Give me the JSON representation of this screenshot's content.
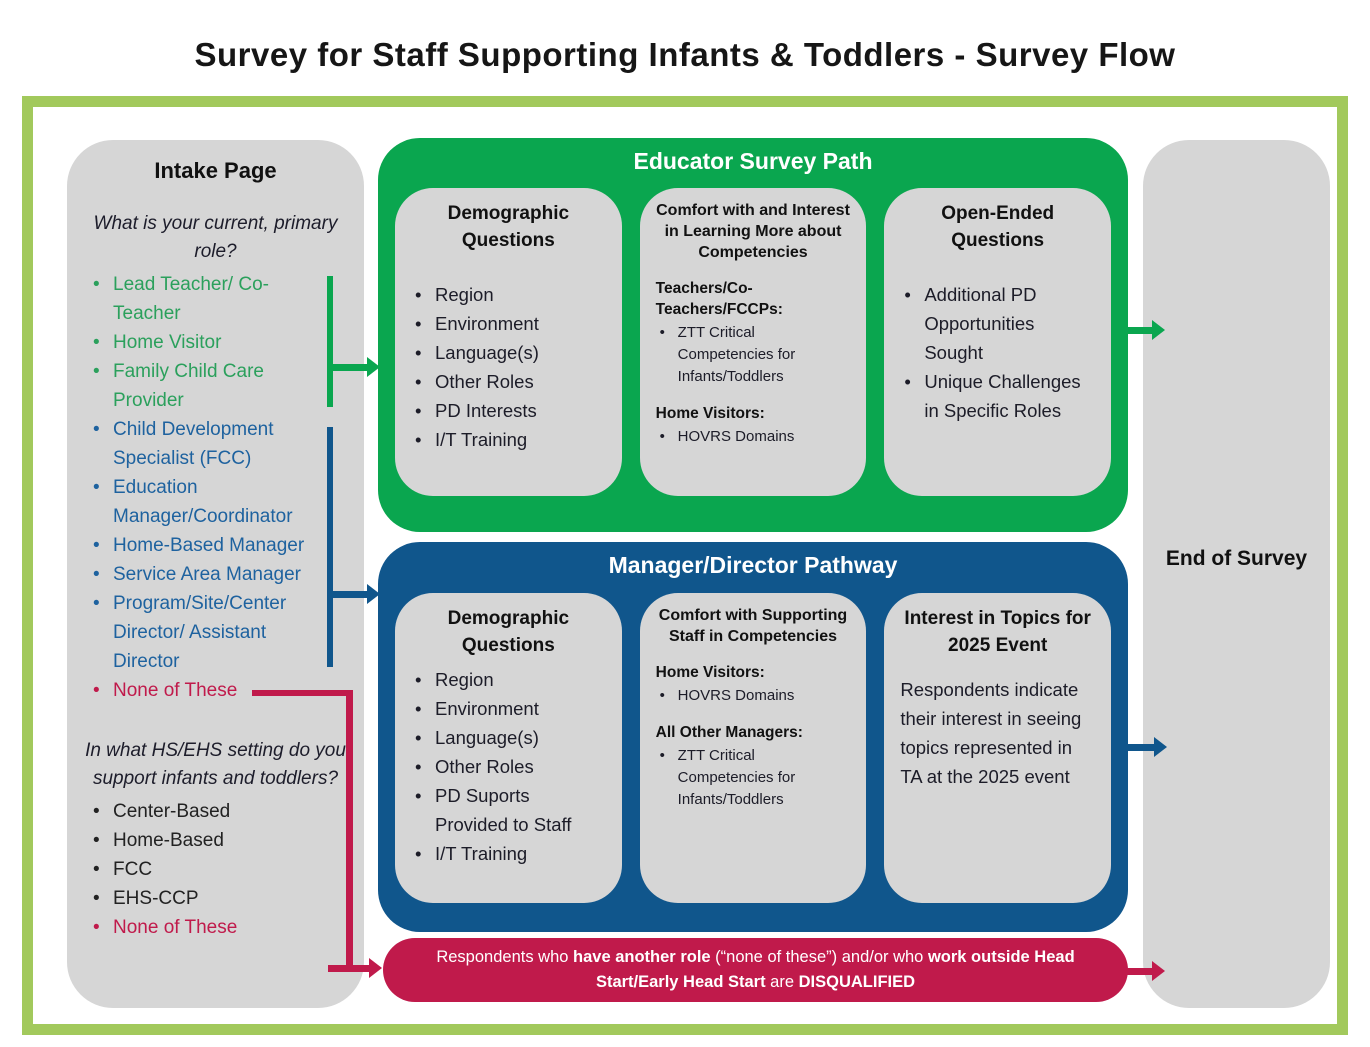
{
  "title": "Survey for Staff Supporting Infants & Toddlers - Survey Flow",
  "colors": {
    "green": "#0AA64F",
    "blue": "#10568C",
    "red": "#C01A4B",
    "frame_border": "#A2C95C",
    "panel_gray": "#D6D6D6",
    "green_text": "#2BA05C",
    "blue_text": "#1E629F",
    "red_text": "#C01A4B",
    "black_text": "#222222"
  },
  "intake": {
    "title": "Intake Page",
    "q1": "What is your current, primary role?",
    "q1_items": [
      {
        "text": "Lead Teacher/ Co-Teacher",
        "color": "green_text"
      },
      {
        "text": "Home Visitor",
        "color": "green_text"
      },
      {
        "text": "Family Child Care Provider",
        "color": "green_text"
      },
      {
        "text": "Child Development Specialist (FCC)",
        "color": "blue_text"
      },
      {
        "text": "Education Manager/Coordinator",
        "color": "blue_text"
      },
      {
        "text": "Home-Based Manager",
        "color": "blue_text"
      },
      {
        "text": "Service Area Manager",
        "color": "blue_text"
      },
      {
        "text": "Program/Site/Center Director/ Assistant Director",
        "color": "blue_text"
      },
      {
        "text": "None of These",
        "color": "red_text"
      }
    ],
    "q2": "In what HS/EHS setting do you support infants and toddlers?",
    "q2_items": [
      {
        "text": "Center-Based",
        "color": "black_text"
      },
      {
        "text": "Home-Based",
        "color": "black_text"
      },
      {
        "text": "FCC",
        "color": "black_text"
      },
      {
        "text": "EHS-CCP",
        "color": "black_text"
      },
      {
        "text": "None of These",
        "color": "red_text"
      }
    ]
  },
  "educator_path": {
    "title": "Educator Survey Path",
    "boxes": [
      {
        "title": "Demographic Questions",
        "bullets": [
          "Region",
          "Environment",
          "Language(s)",
          "Other Roles",
          "PD Interests",
          "I/T Training"
        ]
      },
      {
        "title": "Comfort with and Interest in Learning More about Competencies",
        "sections": [
          {
            "heading": "Teachers/Co-Teachers/FCCPs:",
            "bullets": [
              "ZTT Critical Competencies for Infants/Toddlers"
            ]
          },
          {
            "heading": "Home Visitors:",
            "bullets": [
              "HOVRS Domains"
            ]
          }
        ]
      },
      {
        "title": "Open-Ended Questions",
        "bullets": [
          "Additional PD Opportunities Sought",
          "Unique Challenges in Specific Roles"
        ]
      }
    ]
  },
  "manager_path": {
    "title": "Manager/Director Pathway",
    "boxes": [
      {
        "title": "Demographic Questions",
        "bullets": [
          "Region",
          "Environment",
          "Language(s)",
          "Other Roles",
          "PD Suports Provided to Staff",
          "I/T Training"
        ]
      },
      {
        "title": "Comfort with Supporting Staff in Competencies",
        "sections": [
          {
            "heading": "Home Visitors:",
            "bullets": [
              "HOVRS Domains"
            ]
          },
          {
            "heading": "All Other Managers:",
            "bullets": [
              "ZTT Critical Competencies for Infants/Toddlers"
            ]
          }
        ]
      },
      {
        "title": "Interest in Topics for 2025 Event",
        "paragraph": "Respondents indicate their interest in seeing topics represented in TA at the 2025 event"
      }
    ]
  },
  "end_of_survey": {
    "title": "End of Survey"
  },
  "disqualified_banner": {
    "segments": [
      {
        "text": "Respondents who ",
        "bold": false
      },
      {
        "text": "have another role",
        "bold": true
      },
      {
        "text": " (“none of these”) and/or who ",
        "bold": false
      },
      {
        "text": "work outside Head Start/Early Head Start",
        "bold": true
      },
      {
        "text": " are ",
        "bold": false
      },
      {
        "text": "DISQUALIFIED",
        "bold": true
      }
    ]
  }
}
